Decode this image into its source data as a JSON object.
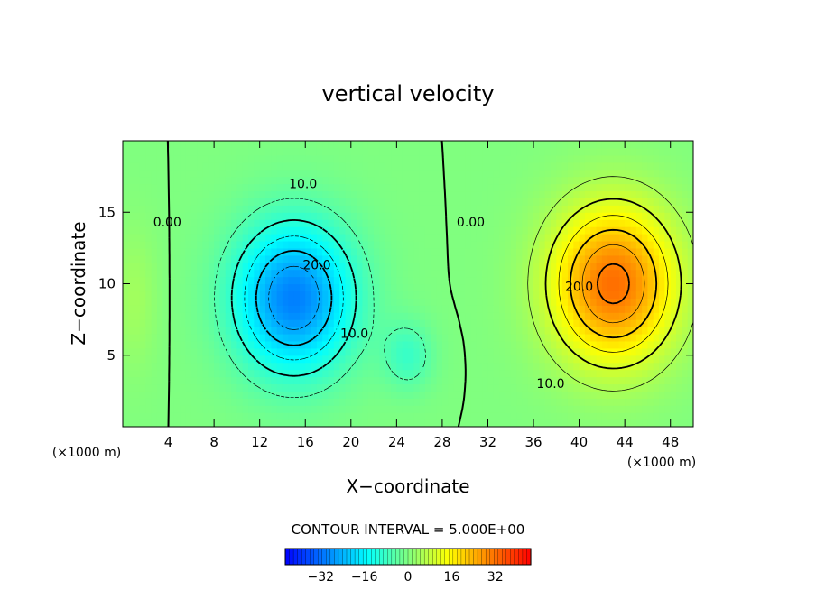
{
  "chart_data": {
    "type": "heatmap",
    "title": "vertical velocity",
    "xlabel": "X−coordinate",
    "ylabel": "Z−coordinate",
    "x_unit_left": "(×1000 m)",
    "x_unit_right": "(×1000 m)",
    "xlim": [
      0,
      50
    ],
    "ylim": [
      0,
      20
    ],
    "x_ticks": [
      4,
      8,
      12,
      16,
      20,
      24,
      28,
      32,
      36,
      40,
      44,
      48
    ],
    "x_tick_labels": [
      "4",
      "8",
      "12",
      "16",
      "20",
      "24",
      "28",
      "32",
      "36",
      "40",
      "44",
      "48"
    ],
    "y_ticks": [
      5,
      10,
      15
    ],
    "y_tick_labels": [
      "5",
      "10",
      "15"
    ],
    "contour_interval_text": "CONTOUR INTERVAL = 5.000E+00",
    "contour_labels": [
      {
        "text": "0.00",
        "x": 3.9,
        "z": 14.0
      },
      {
        "text": "10.0",
        "x": 15.8,
        "z": 16.7
      },
      {
        "text": "20.0",
        "x": 17.0,
        "z": 11.0
      },
      {
        "text": "10.0",
        "x": 20.3,
        "z": 6.2
      },
      {
        "text": "0.00",
        "x": 30.5,
        "z": 14.0
      },
      {
        "text": "20.0",
        "x": 40.0,
        "z": 9.5
      },
      {
        "text": "10.0",
        "x": 37.5,
        "z": 2.7
      }
    ],
    "extrema": {
      "downdraft": {
        "x": 15,
        "z": 9,
        "value": -30
      },
      "updraft": {
        "x": 43,
        "z": 10,
        "value": 32
      }
    },
    "colorbar": {
      "min": -45,
      "max": 45,
      "tick_values": [
        -32,
        -16,
        0,
        16,
        32
      ],
      "tick_labels": [
        "−32",
        "−16",
        "0",
        "16",
        "32"
      ]
    },
    "colors": {
      "background_field": "#22dd22",
      "negative_core": "#1030e0",
      "positive_core": "#ff2a00"
    }
  }
}
